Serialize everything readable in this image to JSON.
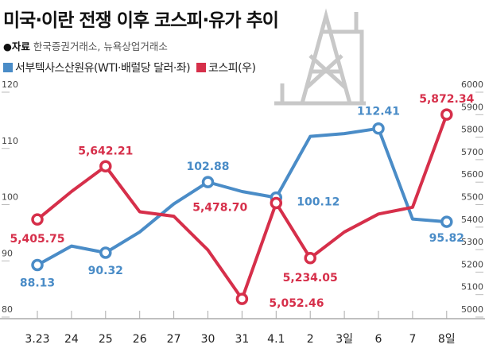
{
  "chart_data": {
    "type": "line",
    "title": "미국·이란 전쟁 이후 코스피·유가 추이",
    "source_label": "●자료",
    "source": "한국증권거래소, 뉴욕상업거래소",
    "categories": [
      "3.23",
      "24",
      "25",
      "26",
      "27",
      "30",
      "31",
      "4.1",
      "2",
      "3일",
      "6",
      "7",
      "8일"
    ],
    "left_axis": {
      "ylim": [
        80,
        120
      ],
      "ticks": [
        "80",
        "90",
        "100",
        "110",
        "120"
      ]
    },
    "right_axis": {
      "ylim": [
        5000,
        6000
      ],
      "ticks": [
        "5000",
        "5100",
        "5200",
        "5300",
        "5400",
        "5500",
        "5600",
        "5700",
        "5800",
        "5900",
        "6000"
      ]
    },
    "series": [
      {
        "name": "서부텍사스산원유(WTI·배럴당 달러·좌)",
        "color": "#4a8cc7",
        "axis": "left",
        "values": [
          88.13,
          91.5,
          90.32,
          94.0,
          99.0,
          102.88,
          101.2,
          100.12,
          111.0,
          111.5,
          112.41,
          96.3,
          95.82
        ],
        "labels": [
          "88.13",
          "",
          "90.32",
          "",
          "",
          "102.88",
          "",
          "100.12",
          "",
          "",
          "112.41",
          "",
          "95.82"
        ]
      },
      {
        "name": "코스피(우)",
        "color": "#d62f4a",
        "axis": "right",
        "values": [
          5405.75,
          5530,
          5642.21,
          5440,
          5420,
          5270,
          5052.46,
          5478.7,
          5234.05,
          5350,
          5430,
          5460,
          5872.34
        ],
        "labels": [
          "5,405.75",
          "",
          "5,642.21",
          "",
          "",
          "",
          "5,052.46",
          "5,478.70",
          "5,234.05",
          "",
          "",
          "",
          "5,872.34"
        ]
      }
    ]
  }
}
